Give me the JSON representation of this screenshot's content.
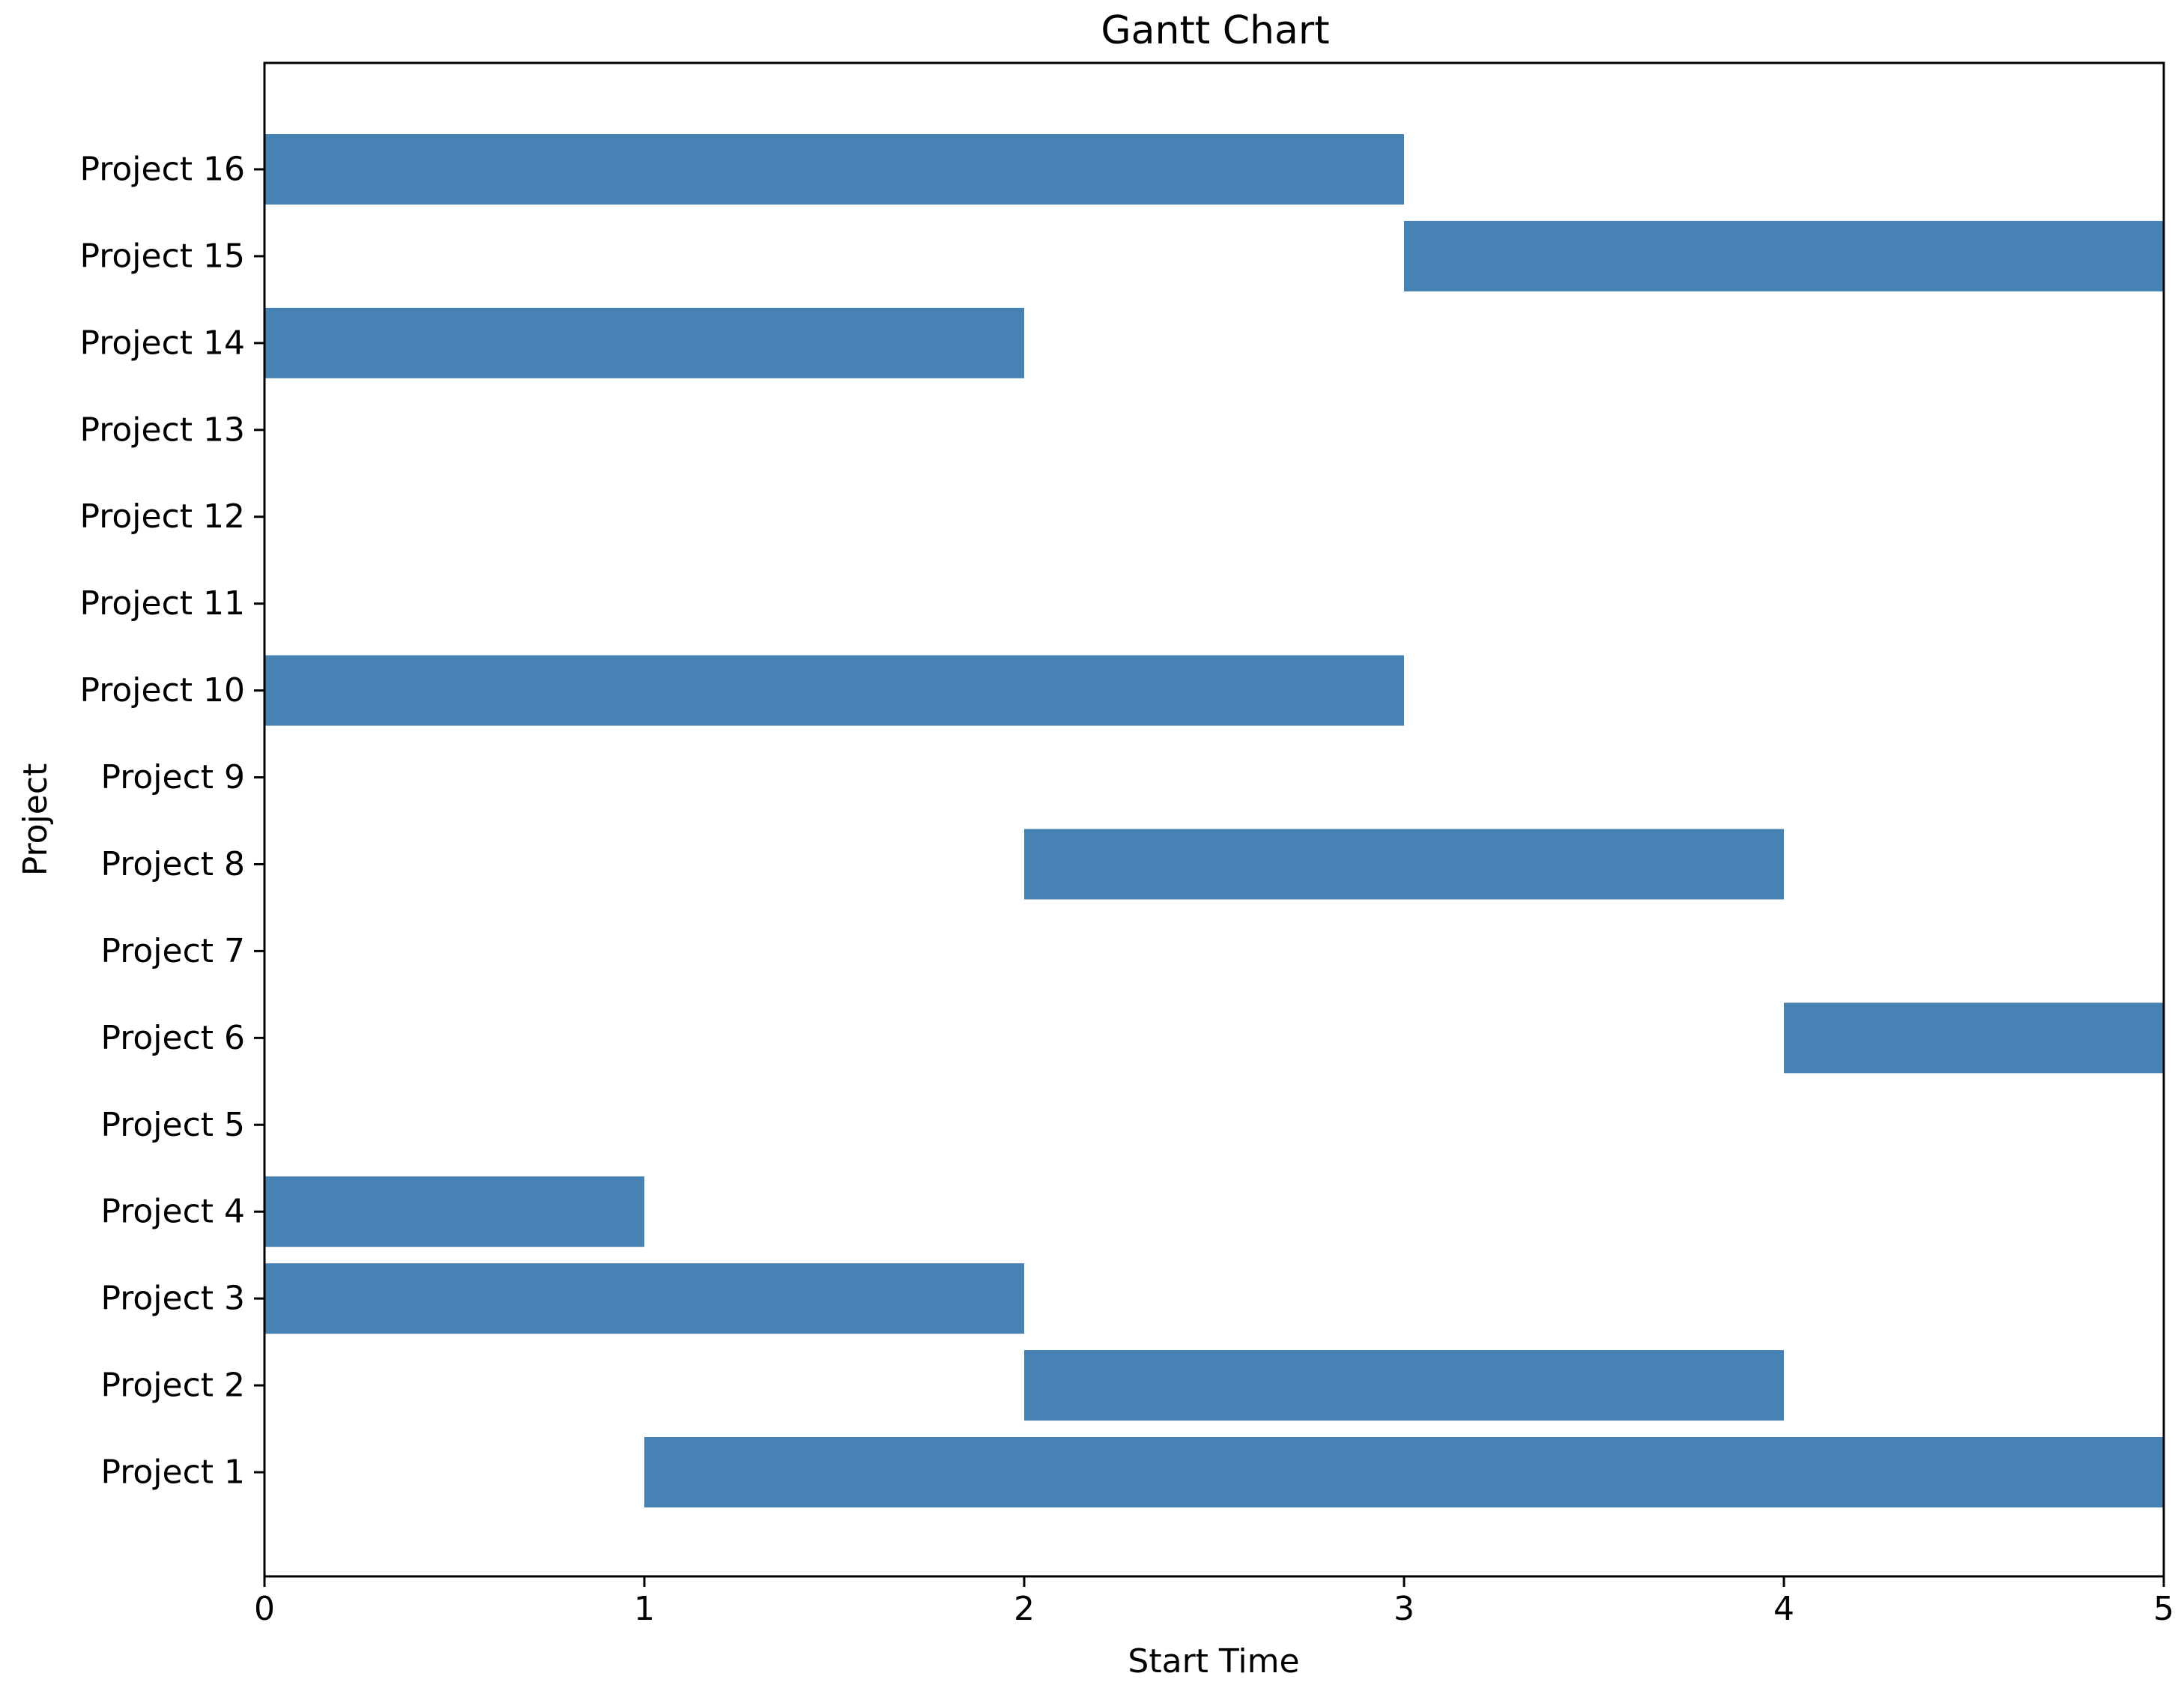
{
  "chart_data": {
    "type": "bar",
    "orientation": "horizontal",
    "title": "Gantt Chart",
    "xlabel": "Start Time",
    "ylabel": "Project",
    "xlim": [
      0,
      5
    ],
    "x_ticks": [
      "0",
      "1",
      "2",
      "3",
      "4",
      "5"
    ],
    "grid": false,
    "bar_color": "#4682b4",
    "categories": [
      "Project 1",
      "Project 2",
      "Project 3",
      "Project 4",
      "Project 5",
      "Project 6",
      "Project 7",
      "Project 8",
      "Project 9",
      "Project 10",
      "Project 11",
      "Project 12",
      "Project 13",
      "Project 14",
      "Project 15",
      "Project 16"
    ],
    "tasks": [
      {
        "label": "Project 1",
        "start": 1,
        "end": 5
      },
      {
        "label": "Project 2",
        "start": 2,
        "end": 4
      },
      {
        "label": "Project 3",
        "start": 0,
        "end": 2
      },
      {
        "label": "Project 4",
        "start": 0,
        "end": 1
      },
      {
        "label": "Project 5",
        "start": null,
        "end": null
      },
      {
        "label": "Project 6",
        "start": 4,
        "end": 5
      },
      {
        "label": "Project 7",
        "start": null,
        "end": null
      },
      {
        "label": "Project 8",
        "start": 2,
        "end": 4
      },
      {
        "label": "Project 9",
        "start": null,
        "end": null
      },
      {
        "label": "Project 10",
        "start": 0,
        "end": 3
      },
      {
        "label": "Project 11",
        "start": null,
        "end": null
      },
      {
        "label": "Project 12",
        "start": null,
        "end": null
      },
      {
        "label": "Project 13",
        "start": null,
        "end": null
      },
      {
        "label": "Project 14",
        "start": 0,
        "end": 2
      },
      {
        "label": "Project 15",
        "start": 3,
        "end": 5
      },
      {
        "label": "Project 16",
        "start": 0,
        "end": 3
      }
    ]
  }
}
